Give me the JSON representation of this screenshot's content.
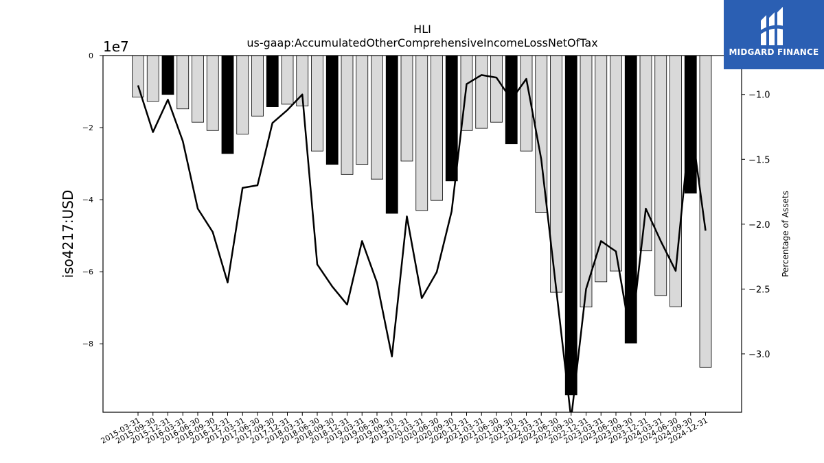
{
  "chart_data": {
    "type": "bar+line",
    "title": "HLI",
    "subtitle": "us-gaap:AccumulatedOtherComprehensiveIncomeLossNetOfTax",
    "ylabel": "iso4217:USD",
    "y2label": "Percentage of Assets",
    "y_offset_label": "1e7",
    "ylim": [
      -9.9,
      0
    ],
    "y_ticks": [
      0,
      -2,
      -4,
      -6,
      -8
    ],
    "y2lim": [
      -3.45,
      -0.7
    ],
    "y2_ticks": [
      -1.0,
      -1.5,
      -2.0,
      -2.5,
      -3.0
    ],
    "y2_tick_labels": [
      "−1.0",
      "−1.5",
      "−2.0",
      "−2.5",
      "−3.0"
    ],
    "categories": [
      "2015-03-31",
      "2015-09-30",
      "2015-12-31",
      "2016-03-31",
      "2016-06-30",
      "2016-09-30",
      "2016-12-31",
      "2017-03-31",
      "2017-06-30",
      "2017-09-30",
      "2017-12-31",
      "2018-03-31",
      "2018-06-30",
      "2018-09-30",
      "2018-12-31",
      "2019-03-31",
      "2019-06-30",
      "2019-09-30",
      "2019-12-31",
      "2020-03-31",
      "2020-06-30",
      "2020-09-30",
      "2020-12-31",
      "2021-03-31",
      "2021-06-30",
      "2021-09-30",
      "2021-12-31",
      "2022-03-31",
      "2022-06-30",
      "2022-09-30",
      "2022-12-31",
      "2023-03-31",
      "2023-06-30",
      "2023-09-30",
      "2023-12-31",
      "2024-03-31",
      "2024-06-30",
      "2024-09-30",
      "2024-12-31"
    ],
    "series": [
      {
        "values": [
          -1.15,
          -1.27,
          -1.08,
          -1.48,
          -1.85,
          -2.08,
          -2.72,
          -2.18,
          -1.68,
          -1.42,
          -1.35,
          -1.4,
          -2.65,
          -3.02,
          -3.3,
          -3.02,
          -3.43,
          -4.38,
          -2.93,
          -4.3,
          -4.02,
          -3.48,
          -2.08,
          -2.02,
          -1.85,
          -2.45,
          -2.65,
          -4.35,
          -6.57,
          -9.42,
          -6.98,
          -6.28,
          -5.98,
          -7.98,
          -5.42,
          -6.66,
          -6.97,
          -3.82,
          -8.65
        ],
        "highlight": [
          false,
          false,
          true,
          false,
          false,
          false,
          true,
          false,
          false,
          true,
          false,
          false,
          false,
          true,
          false,
          false,
          false,
          true,
          false,
          false,
          false,
          true,
          false,
          false,
          false,
          true,
          false,
          false,
          false,
          true,
          false,
          false,
          false,
          true,
          false,
          false,
          false,
          true,
          false
        ]
      },
      {
        "values": [
          -0.93,
          -1.29,
          -1.04,
          -1.36,
          -1.88,
          -2.06,
          -2.45,
          -1.72,
          -1.7,
          -1.22,
          -1.12,
          -1.0,
          -2.31,
          -2.48,
          -2.62,
          -2.13,
          -2.45,
          -3.02,
          -1.94,
          -2.57,
          -2.37,
          -1.9,
          -0.92,
          -0.85,
          -0.87,
          -1.04,
          -0.88,
          -1.5,
          -2.5,
          -3.5,
          -2.5,
          -2.13,
          -2.21,
          -2.88,
          -1.88,
          -2.13,
          -2.36,
          -1.2,
          -2.05
        ]
      }
    ],
    "grid": false,
    "colors": {
      "bar_default": "#d9d9d9",
      "bar_highlight": "#000000",
      "line": "#000000"
    }
  },
  "logo": {
    "text": "MIDGARD FINANCE",
    "bg": "#2b5fb3"
  }
}
